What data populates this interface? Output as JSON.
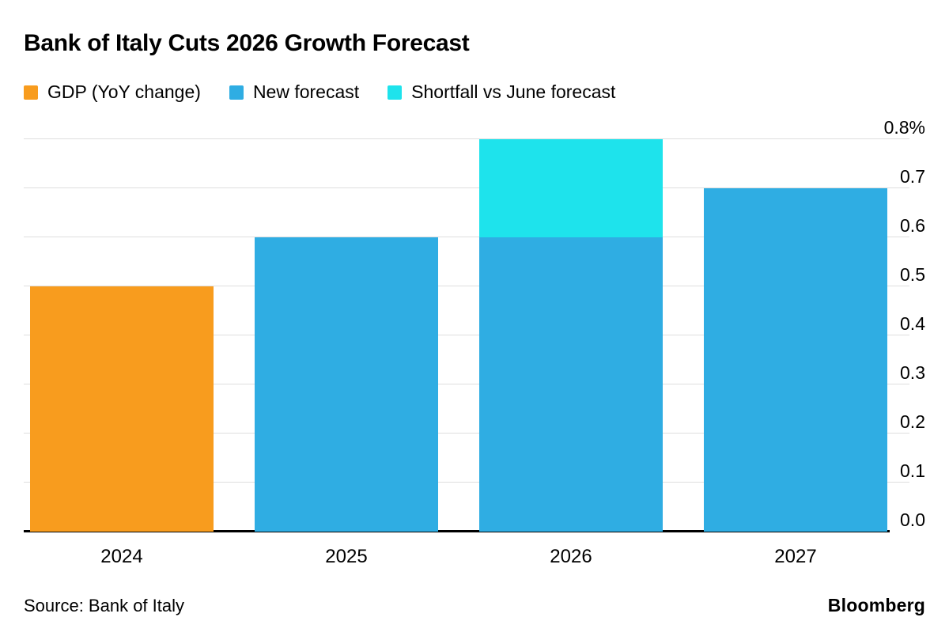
{
  "chart_data": {
    "type": "bar",
    "stacked": true,
    "title": "Bank of Italy Cuts 2026 Growth Forecast",
    "categories": [
      "2024",
      "2025",
      "2026",
      "2027"
    ],
    "series": [
      {
        "name": "GDP (YoY change)",
        "color": "#F89C1E",
        "values": [
          0.5,
          null,
          null,
          null
        ]
      },
      {
        "name": "New forecast",
        "color": "#2FADE3",
        "values": [
          null,
          0.6,
          0.6,
          0.7
        ]
      },
      {
        "name": "Shortfall vs June forecast",
        "color": "#1EE3EC",
        "values": [
          null,
          null,
          0.2,
          null
        ]
      }
    ],
    "ylim": [
      0,
      0.8
    ],
    "ytick_step": 0.1,
    "ytick_labels": [
      "0.0",
      "0.1",
      "0.2",
      "0.3",
      "0.4",
      "0.5",
      "0.6",
      "0.7",
      "0.8%"
    ],
    "grid": true,
    "legend_position": "top",
    "axis_label_side": "right"
  },
  "footer": {
    "source": "Source: Bank of Italy",
    "brand": "Bloomberg"
  }
}
